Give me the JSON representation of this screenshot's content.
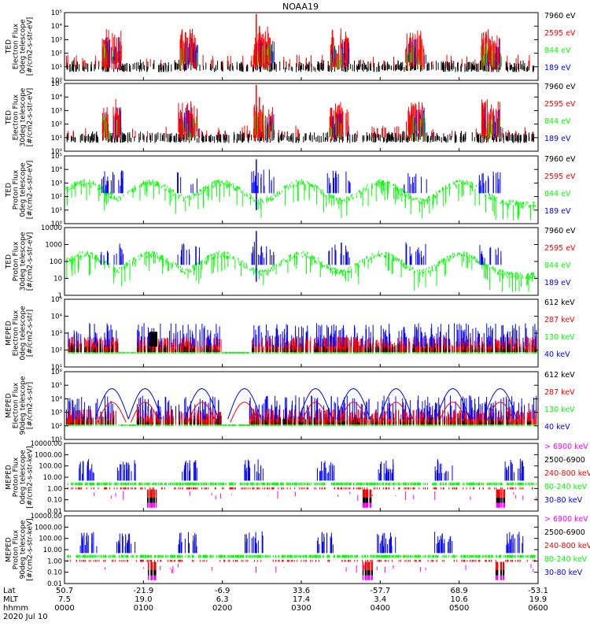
{
  "title": "NOAA19",
  "colors": {
    "black": "#000000",
    "red": "#ff0000",
    "green": "#00ff00",
    "blue": "#0000ff",
    "magenta": "#ff00ff"
  },
  "chart_data": [
    {
      "type": "scatter",
      "ylabel": [
        "TED",
        "Electron Flux",
        "0deg telescope",
        "[#/cm2-s-str-eV]"
      ],
      "scale": "log",
      "yticks": [
        "10⁰",
        "10¹",
        "10²",
        "10³",
        "10⁴",
        "10⁵"
      ],
      "legend": [
        {
          "label": "7960 eV",
          "color": "#000000"
        },
        {
          "label": "2595 eV",
          "color": "#ff0000"
        },
        {
          "label": "844 eV",
          "color": "#00ff00"
        },
        {
          "label": "189 eV",
          "color": "#0000ff"
        }
      ]
    },
    {
      "type": "scatter",
      "ylabel": [
        "TED",
        "Electron Flux",
        "30deg telescope",
        "[#/cm2-s-str-eV]"
      ],
      "scale": "log",
      "yticks": [
        "10⁰",
        "10¹",
        "10²",
        "10³",
        "10⁴",
        "10⁵"
      ],
      "legend": [
        {
          "label": "7960 eV",
          "color": "#000000"
        },
        {
          "label": "2595 eV",
          "color": "#ff0000"
        },
        {
          "label": "844 eV",
          "color": "#00ff00"
        },
        {
          "label": "189 eV",
          "color": "#0000ff"
        }
      ]
    },
    {
      "type": "scatter",
      "ylabel": [
        "TED",
        "Proton Flux",
        "0deg telescope",
        "[#/cm2-s-str-eV]"
      ],
      "scale": "log",
      "yticks": [
        "10⁰",
        "10¹",
        "10²",
        "10³",
        "10⁴",
        "10⁵"
      ],
      "legend": [
        {
          "label": "7960 eV",
          "color": "#000000"
        },
        {
          "label": "2595 eV",
          "color": "#ff0000"
        },
        {
          "label": "844 eV",
          "color": "#00ff00"
        },
        {
          "label": "189 eV",
          "color": "#0000ff"
        }
      ]
    },
    {
      "type": "scatter",
      "ylabel": [
        "TED",
        "Proton Flux",
        "30deg telescope",
        "[#/cm2-s-str-eV]"
      ],
      "scale": "log",
      "yticks": [
        "1",
        "10",
        "100",
        "1000",
        "10000"
      ],
      "legend": [
        {
          "label": "7960 eV",
          "color": "#000000"
        },
        {
          "label": "2595 eV",
          "color": "#ff0000"
        },
        {
          "label": "844 eV",
          "color": "#00ff00"
        },
        {
          "label": "189 eV",
          "color": "#0000ff"
        }
      ]
    },
    {
      "type": "scatter",
      "ylabel": [
        "MEPED",
        "Electron Flux",
        "0deg telescope",
        "[#/cm2-s-str]"
      ],
      "scale": "log",
      "yticks": [
        "10¹",
        "10²",
        "10³",
        "10⁴",
        "10⁵"
      ],
      "legend": [
        {
          "label": "612 keV",
          "color": "#000000"
        },
        {
          "label": "287 keV",
          "color": "#ff0000"
        },
        {
          "label": "130 keV",
          "color": "#00ff00"
        },
        {
          "label": "40 keV",
          "color": "#0000ff"
        }
      ]
    },
    {
      "type": "scatter",
      "ylabel": [
        "MEPED",
        "Electron Flux",
        "90deg telescope",
        "[#/cm2-s-str]"
      ],
      "scale": "log",
      "yticks": [
        "10¹",
        "10²",
        "10³",
        "10⁴",
        "10⁵",
        "10⁶"
      ],
      "legend": [
        {
          "label": "612 keV",
          "color": "#000000"
        },
        {
          "label": "287 keV",
          "color": "#ff0000"
        },
        {
          "label": "130 keV",
          "color": "#00ff00"
        },
        {
          "label": "40 keV",
          "color": "#0000ff"
        }
      ]
    },
    {
      "type": "scatter",
      "ylabel": [
        "MEPED",
        "Proton Flux",
        "0deg telescope",
        "[#/cm2-s-str-keV]"
      ],
      "scale": "log",
      "yticks": [
        "0.01",
        "0.10",
        "1.00",
        "10.00",
        "100.00",
        "1000.00",
        "10000.00"
      ],
      "legend": [
        {
          "label": "> 6900 keV",
          "color": "#ff00ff"
        },
        {
          "label": "2500-6900",
          "color": "#000000"
        },
        {
          "label": "240-800 keV",
          "color": "#ff0000"
        },
        {
          "label": "80-240 keV",
          "color": "#00ff00"
        },
        {
          "label": "30-80 keV",
          "color": "#0000ff"
        }
      ]
    },
    {
      "type": "scatter",
      "ylabel": [
        "MEPED",
        "Proton Flux",
        "90deg telescope",
        "[#/cm2-s-str-keV]"
      ],
      "scale": "log",
      "yticks": [
        "0.01",
        "0.10",
        "1.00",
        "10.00",
        "100.00",
        "1000.00",
        "10000.00"
      ],
      "legend": [
        {
          "label": "> 6900 keV",
          "color": "#ff00ff"
        },
        {
          "label": "2500-6900",
          "color": "#000000"
        },
        {
          "label": "240-800 keV",
          "color": "#ff0000"
        },
        {
          "label": "80-240 keV",
          "color": "#00ff00"
        },
        {
          "label": "30-80 keV",
          "color": "#0000ff"
        }
      ]
    }
  ],
  "xaxis": {
    "row_labels": [
      "Lat",
      "MLT",
      "hhmm",
      "2020 Jul 10"
    ],
    "ticks": [
      {
        "lat": "50.7",
        "mlt": "7.5",
        "time": "0000"
      },
      {
        "lat": "-21.9",
        "mlt": "19.0",
        "time": "0100"
      },
      {
        "lat": "-6.9",
        "mlt": "6.3",
        "time": "0200"
      },
      {
        "lat": "33.6",
        "mlt": "17.4",
        "time": "0300"
      },
      {
        "lat": "-57.7",
        "mlt": "3.4",
        "time": "0400"
      },
      {
        "lat": "68.9",
        "mlt": "10.6",
        "time": "0500"
      },
      {
        "lat": "-53.1",
        "mlt": "19.9",
        "time": "0600"
      }
    ]
  }
}
